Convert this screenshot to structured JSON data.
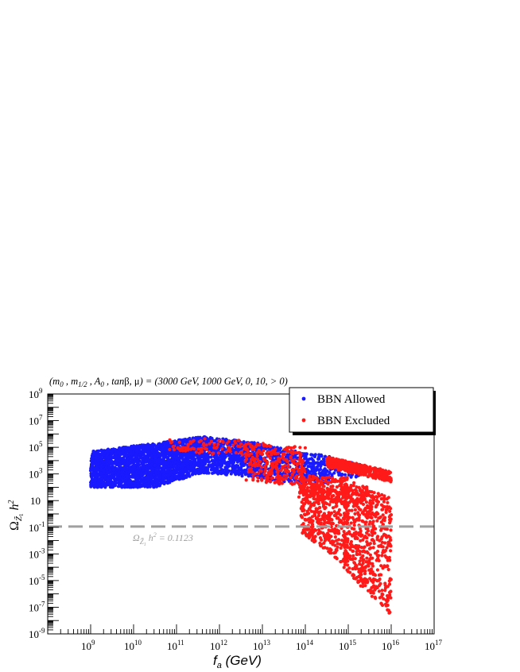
{
  "chart_data": {
    "type": "scatter",
    "title": "(m0 , m1/2 , A0 , tanβ, μ) = (3000 GeV, 1000 GeV, 0, 10, > 0)",
    "title_parts": {
      "open": "(",
      "m0_base": "m",
      "m0_sub": "0",
      "m12_base": "m",
      "m12_sub": "1/2",
      "a0_base": "A",
      "a0_sub": "0",
      "tanb": "tan",
      "beta": "β",
      "mu": "μ",
      "values": ") = (3000 GeV, 1000 GeV, 0, 10, > 0)"
    },
    "xlabel": "f_a (GeV)",
    "xlabel_parts": {
      "f": "f",
      "sub": "a",
      "rest": " (GeV)"
    },
    "ylabel": "Ω_Z̃1 h^2",
    "ylabel_parts": {
      "omega": "Ω",
      "sub": "Z̃",
      "subsub": "1",
      "h": "h",
      "sup": "2"
    },
    "x_scale": "log",
    "y_scale": "log",
    "xlim_log10": [
      8,
      17
    ],
    "ylim_log10": [
      -9,
      9
    ],
    "x_ticks": [
      {
        "base": "10",
        "exp": "9",
        "log": 9
      },
      {
        "base": "10",
        "exp": "10",
        "log": 10
      },
      {
        "base": "10",
        "exp": "11",
        "log": 11
      },
      {
        "base": "10",
        "exp": "12",
        "log": 12
      },
      {
        "base": "10",
        "exp": "13",
        "log": 13
      },
      {
        "base": "10",
        "exp": "14",
        "log": 14
      },
      {
        "base": "10",
        "exp": "15",
        "log": 15
      },
      {
        "base": "10",
        "exp": "16",
        "log": 16
      },
      {
        "base": "10",
        "exp": "17",
        "log": 17
      }
    ],
    "y_ticks": [
      {
        "base": "10",
        "exp": "-9",
        "log": -9
      },
      {
        "base": "10",
        "exp": "-7",
        "log": -7
      },
      {
        "base": "10",
        "exp": "-5",
        "log": -5
      },
      {
        "base": "10",
        "exp": "-3",
        "log": -3
      },
      {
        "base": "10",
        "exp": "-1",
        "log": -1
      },
      {
        "base": "10",
        "exp": "",
        "log": 1
      },
      {
        "base": "10",
        "exp": "3",
        "log": 3
      },
      {
        "base": "10",
        "exp": "5",
        "log": 5
      },
      {
        "base": "10",
        "exp": "7",
        "log": 7
      },
      {
        "base": "10",
        "exp": "9",
        "log": 9
      }
    ],
    "reference_line": {
      "y_value": 0.1123,
      "color": "#a0a0a0",
      "label_omega": "Ω",
      "label_sub": "Z̃",
      "label_subsub": "1",
      "label_h": "h",
      "label_sup": "2",
      "label_value": " = 0.1123"
    },
    "legend": {
      "placement": "top-right"
    },
    "series": [
      {
        "name": "BBN Allowed",
        "color": "#1a1aff",
        "regions": [
          {
            "x_log": [
              9.0,
              10.5
            ],
            "y_log_min": [
              2.0,
              2.0
            ],
            "y_log_max": [
              4.7,
              5.3
            ],
            "count": 1300
          },
          {
            "x_log": [
              10.5,
              11.6
            ],
            "y_log_min": [
              2.0,
              3.1
            ],
            "y_log_max": [
              5.3,
              5.8
            ],
            "count": 900
          },
          {
            "x_log": [
              11.6,
              13.0
            ],
            "y_log_min": [
              3.1,
              2.7
            ],
            "y_log_max": [
              5.8,
              5.3
            ],
            "count": 700
          },
          {
            "x_log": [
              13.0,
              14.6
            ],
            "y_log_min": [
              2.4,
              2.3
            ],
            "y_log_max": [
              5.2,
              4.3
            ],
            "count": 420
          },
          {
            "x_log": [
              14.6,
              15.3
            ],
            "y_log_min": [
              2.6,
              2.8
            ],
            "y_log_max": [
              4.2,
              3.7
            ],
            "count": 60
          }
        ]
      },
      {
        "name": "BBN Excluded",
        "color": "#ff1a1a",
        "regions": [
          {
            "x_log": [
              10.8,
              12.8
            ],
            "y_log_min": [
              4.6,
              4.4
            ],
            "y_log_max": [
              5.8,
              5.5
            ],
            "count": 90
          },
          {
            "x_log": [
              12.6,
              14.0
            ],
            "y_log_min": [
              2.5,
              2.0
            ],
            "y_log_max": [
              5.4,
              5.0
            ],
            "count": 260
          },
          {
            "x_log": [
              13.9,
              15.0
            ],
            "y_log_min": [
              -1.4,
              -4.0
            ],
            "y_log_max": [
              2.9,
              2.7
            ],
            "count": 520
          },
          {
            "x_log": [
              14.9,
              16.0
            ],
            "y_log_min": [
              -4.2,
              -7.6
            ],
            "y_log_max": [
              2.8,
              1.2
            ],
            "count": 560
          },
          {
            "x_log": [
              14.5,
              16.0
            ],
            "y_log_min": [
              3.5,
              2.4
            ],
            "y_log_max": [
              4.3,
              3.2
            ],
            "count": 380
          },
          {
            "x_log": [
              13.8,
              15.6
            ],
            "y_log_min": [
              1.2,
              0.6
            ],
            "y_log_max": [
              2.4,
              1.8
            ],
            "count": 140
          }
        ]
      }
    ]
  }
}
